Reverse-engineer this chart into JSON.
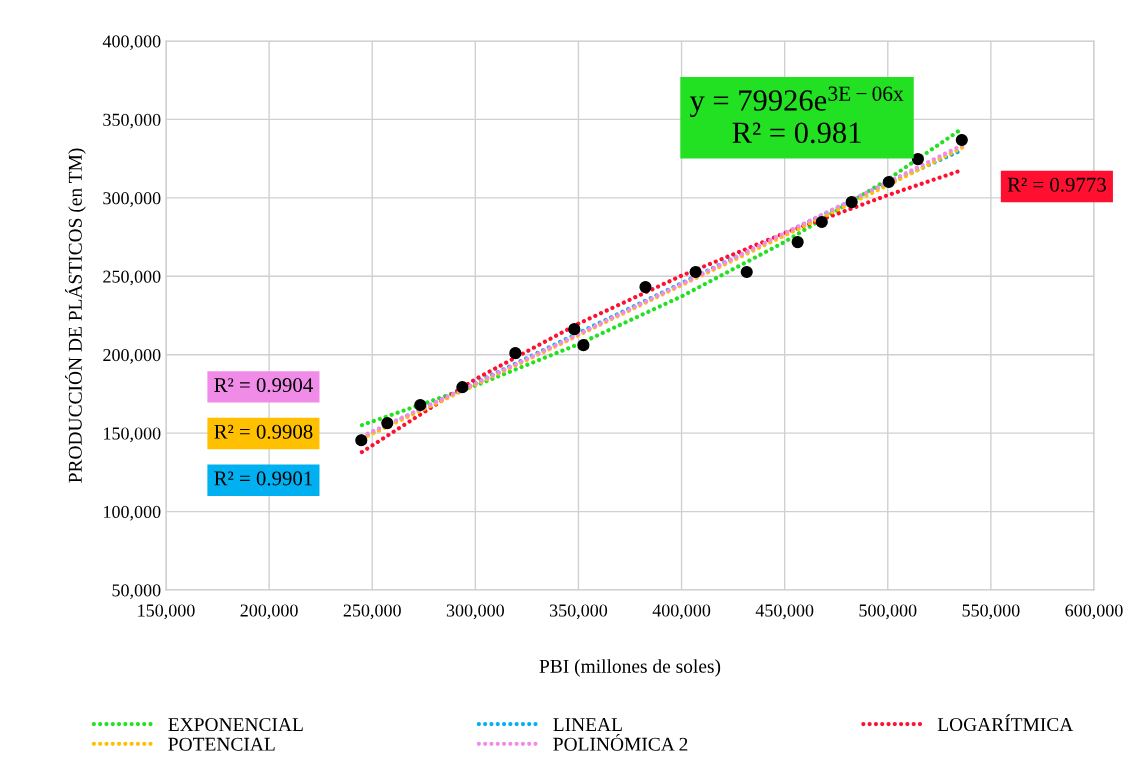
{
  "chart_data": {
    "type": "scatter",
    "xlabel": "PBI (millones de soles)",
    "ylabel": "PRODUCCIÓN DE PLÁSTICOS (en TM)",
    "xlim": [
      150000,
      600000
    ],
    "ylim": [
      50000,
      400000
    ],
    "xticks": [
      {
        "value": 150000,
        "label": "150,000"
      },
      {
        "value": 200000,
        "label": "200,000"
      },
      {
        "value": 250000,
        "label": "250,000"
      },
      {
        "value": 300000,
        "label": "300,000"
      },
      {
        "value": 350000,
        "label": "350,000"
      },
      {
        "value": 400000,
        "label": "400,000"
      },
      {
        "value": 450000,
        "label": "450,000"
      },
      {
        "value": 500000,
        "label": "500,000"
      },
      {
        "value": 550000,
        "label": "550,000"
      },
      {
        "value": 600000,
        "label": "600,000"
      }
    ],
    "yticks": [
      {
        "value": 50000,
        "label": "50,000"
      },
      {
        "value": 100000,
        "label": "100,000"
      },
      {
        "value": 150000,
        "label": "150,000"
      },
      {
        "value": 200000,
        "label": "200,000"
      },
      {
        "value": 250000,
        "label": "250,000"
      },
      {
        "value": 300000,
        "label": "300,000"
      },
      {
        "value": 350000,
        "label": "350,000"
      },
      {
        "value": 400000,
        "label": "400,000"
      }
    ],
    "grid": true,
    "legend": "bottom",
    "series": [
      {
        "marker": "circle",
        "color": "#000000",
        "x": [
          244700,
          257300,
          273300,
          293700,
          319400,
          348000,
          352400,
          382500,
          406800,
          431600,
          456300,
          468000,
          482500,
          500500,
          514600,
          535900
        ],
        "values": [
          145500,
          156400,
          167900,
          179300,
          201000,
          216300,
          206100,
          243100,
          252700,
          252700,
          271800,
          284600,
          297300,
          310100,
          324700,
          336900
        ]
      },
      {
        "type": "line",
        "name": "EXPONENCIAL",
        "color": "#22e022",
        "line_style": "dotted",
        "marker": "none",
        "x": [
          245000,
          300000,
          350000,
          400000,
          450000,
          500000,
          536000
        ],
        "values": [
          155100,
          180300,
          206700,
          237200,
          271900,
          311700,
          344100
        ]
      },
      {
        "type": "line",
        "name": "LINEAL",
        "color": "#00b0f0",
        "line_style": "dotted",
        "marker": "none",
        "x": [
          245000,
          300000,
          350000,
          400000,
          450000,
          500000,
          536000
        ],
        "values": [
          147000,
          182000,
          213800,
          245600,
          277400,
          309200,
          330500
        ]
      },
      {
        "type": "line",
        "name": "LOGARÍTMICA",
        "color": "#ff1030",
        "line_style": "dotted",
        "marker": "none",
        "x": [
          245000,
          300000,
          350000,
          400000,
          450000,
          500000,
          536000
        ],
        "values": [
          137900,
          184400,
          219800,
          250400,
          277500,
          301700,
          317700
        ]
      },
      {
        "type": "line",
        "name": "POTENCIAL",
        "color": "#ffc000",
        "line_style": "dotted",
        "marker": "none",
        "x": [
          245000,
          300000,
          350000,
          400000,
          450000,
          500000,
          536000
        ],
        "values": [
          146500,
          180900,
          212400,
          244400,
          276000,
          308100,
          332000
        ]
      },
      {
        "type": "line",
        "name": "POLINÓMICA 2",
        "color": "#f08ce8",
        "line_style": "dotted",
        "marker": "none",
        "x": [
          245000,
          300000,
          350000,
          400000,
          450000,
          500000,
          536000
        ],
        "values": [
          148000,
          181500,
          213000,
          245000,
          277500,
          310000,
          333500
        ]
      }
    ],
    "annotations": [
      "y = 79926e$^{3E−06x}$\nR² = 0.981",
      "R² = 0.9773",
      "R² = 0.9904",
      "R² = 0.9908",
      "R² = 0.9901"
    ]
  }
}
